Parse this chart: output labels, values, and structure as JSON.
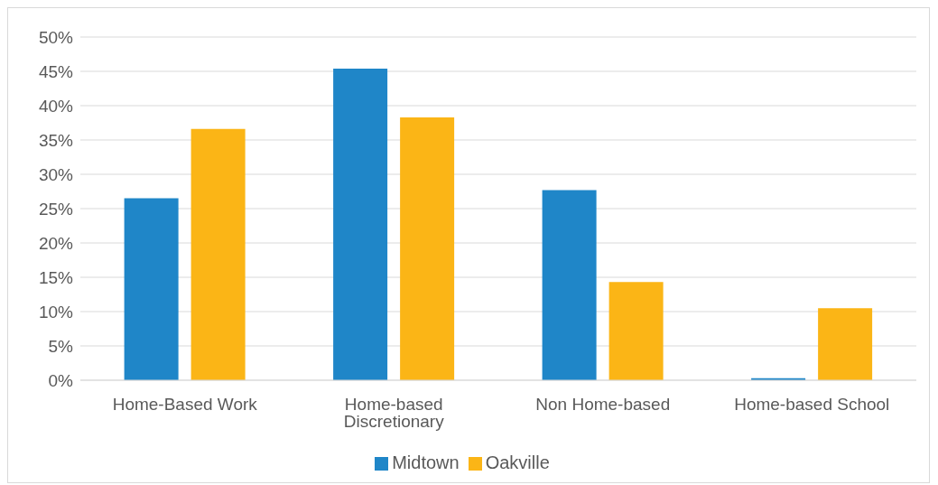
{
  "chart_data": {
    "type": "bar",
    "categories": [
      "Home-Based Work",
      "Home-based Discretionary",
      "Non Home-based",
      "Home-based School"
    ],
    "series": [
      {
        "name": "Midtown",
        "color": "#1f86c8",
        "values": [
          26.5,
          45.4,
          27.7,
          0.3
        ]
      },
      {
        "name": "Oakville",
        "color": "#fbb516",
        "values": [
          36.6,
          38.3,
          14.3,
          10.5
        ]
      }
    ],
    "ylim": [
      0,
      50
    ],
    "yticks": [
      {
        "value": 0,
        "label": "0%"
      },
      {
        "value": 5,
        "label": "5%"
      },
      {
        "value": 10,
        "label": "10%"
      },
      {
        "value": 15,
        "label": "15%"
      },
      {
        "value": 20,
        "label": "20%"
      },
      {
        "value": 25,
        "label": "25%"
      },
      {
        "value": 30,
        "label": "30%"
      },
      {
        "value": 35,
        "label": "35%"
      },
      {
        "value": 40,
        "label": "40%"
      },
      {
        "value": 45,
        "label": "45%"
      },
      {
        "value": 50,
        "label": "50%"
      }
    ],
    "grid": "y",
    "legend": "bottom"
  }
}
